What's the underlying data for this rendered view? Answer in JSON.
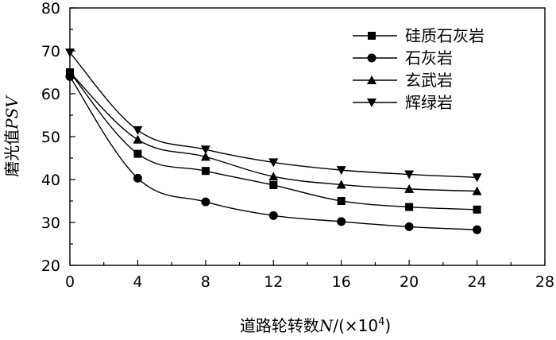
{
  "chart_data": {
    "type": "line",
    "x": [
      0,
      4,
      8,
      12,
      16,
      20,
      24
    ],
    "xlabel_parts": {
      "main": "道路轮转数",
      "var": "N",
      "unit": "/(×10",
      "exp": "4",
      "close": ")"
    },
    "ylabel_parts": {
      "main": "磨光值",
      "var": "PSV"
    },
    "xlim": [
      0,
      28
    ],
    "ylim": [
      20,
      80
    ],
    "xticks": [
      0,
      4,
      8,
      12,
      16,
      20,
      24,
      28
    ],
    "yticks": [
      20,
      30,
      40,
      50,
      60,
      70,
      80
    ],
    "grid": false,
    "legend_position": "top-right",
    "series": [
      {
        "name": "硅质石灰岩",
        "marker": "square",
        "values": [
          65,
          46,
          42,
          38.7,
          35,
          33.6,
          33
        ]
      },
      {
        "name": "石灰岩",
        "marker": "circle",
        "values": [
          64,
          40.3,
          34.8,
          31.6,
          30.2,
          29,
          28.3
        ]
      },
      {
        "name": "玄武岩",
        "marker": "triangle-up",
        "values": [
          65,
          49.3,
          45.3,
          40.7,
          38.8,
          37.8,
          37.3
        ]
      },
      {
        "name": "辉绿岩",
        "marker": "triangle-down",
        "values": [
          69.6,
          51.5,
          47,
          44,
          42.2,
          41.2,
          40.5
        ]
      }
    ]
  }
}
